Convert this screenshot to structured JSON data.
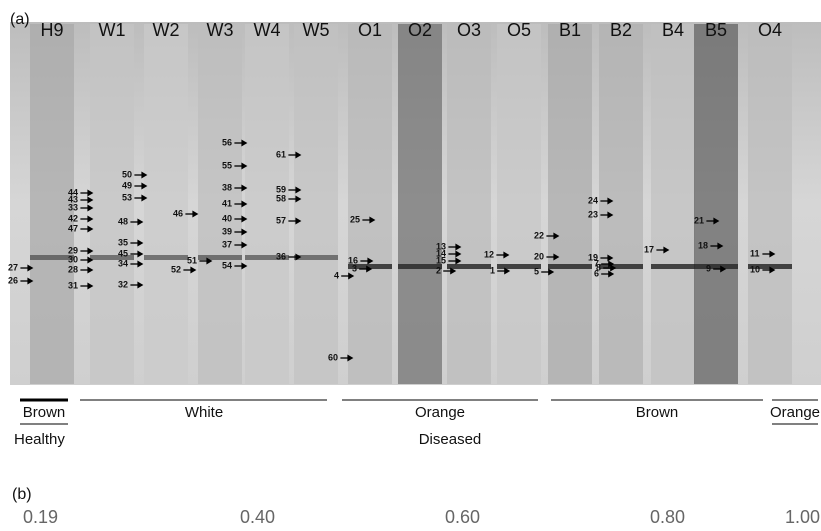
{
  "panel_a": {
    "label": "(a)",
    "lanes": [
      "H9",
      "W1",
      "W2",
      "W3",
      "W4",
      "W5",
      "O1",
      "O2",
      "O3",
      "O5",
      "B1",
      "B2",
      "B4",
      "B5",
      "O4"
    ],
    "bands": [
      "27",
      "26",
      "44",
      "43",
      "33",
      "42",
      "47",
      "29",
      "30",
      "28",
      "31",
      "50",
      "49",
      "53",
      "48",
      "35",
      "45",
      "34",
      "32",
      "46",
      "51",
      "52",
      "56",
      "55",
      "38",
      "41",
      "40",
      "39",
      "37",
      "54",
      "61",
      "59",
      "58",
      "57",
      "36",
      "25",
      "4",
      "60",
      "16",
      "3",
      "13",
      "14",
      "15",
      "2",
      "12",
      "1",
      "22",
      "20",
      "5",
      "24",
      "23",
      "19",
      "7",
      "8",
      "6",
      "17",
      "18",
      "21",
      "9",
      "11",
      "10"
    ],
    "groups": [
      "Brown",
      "White",
      "Orange",
      "Brown",
      "Orange"
    ],
    "conditions": [
      "Healthy",
      "Diseased"
    ]
  },
  "panel_b": {
    "label": "(b)",
    "scale": [
      "0.19",
      "0.40",
      "0.60",
      "0.80",
      "1.00"
    ]
  }
}
